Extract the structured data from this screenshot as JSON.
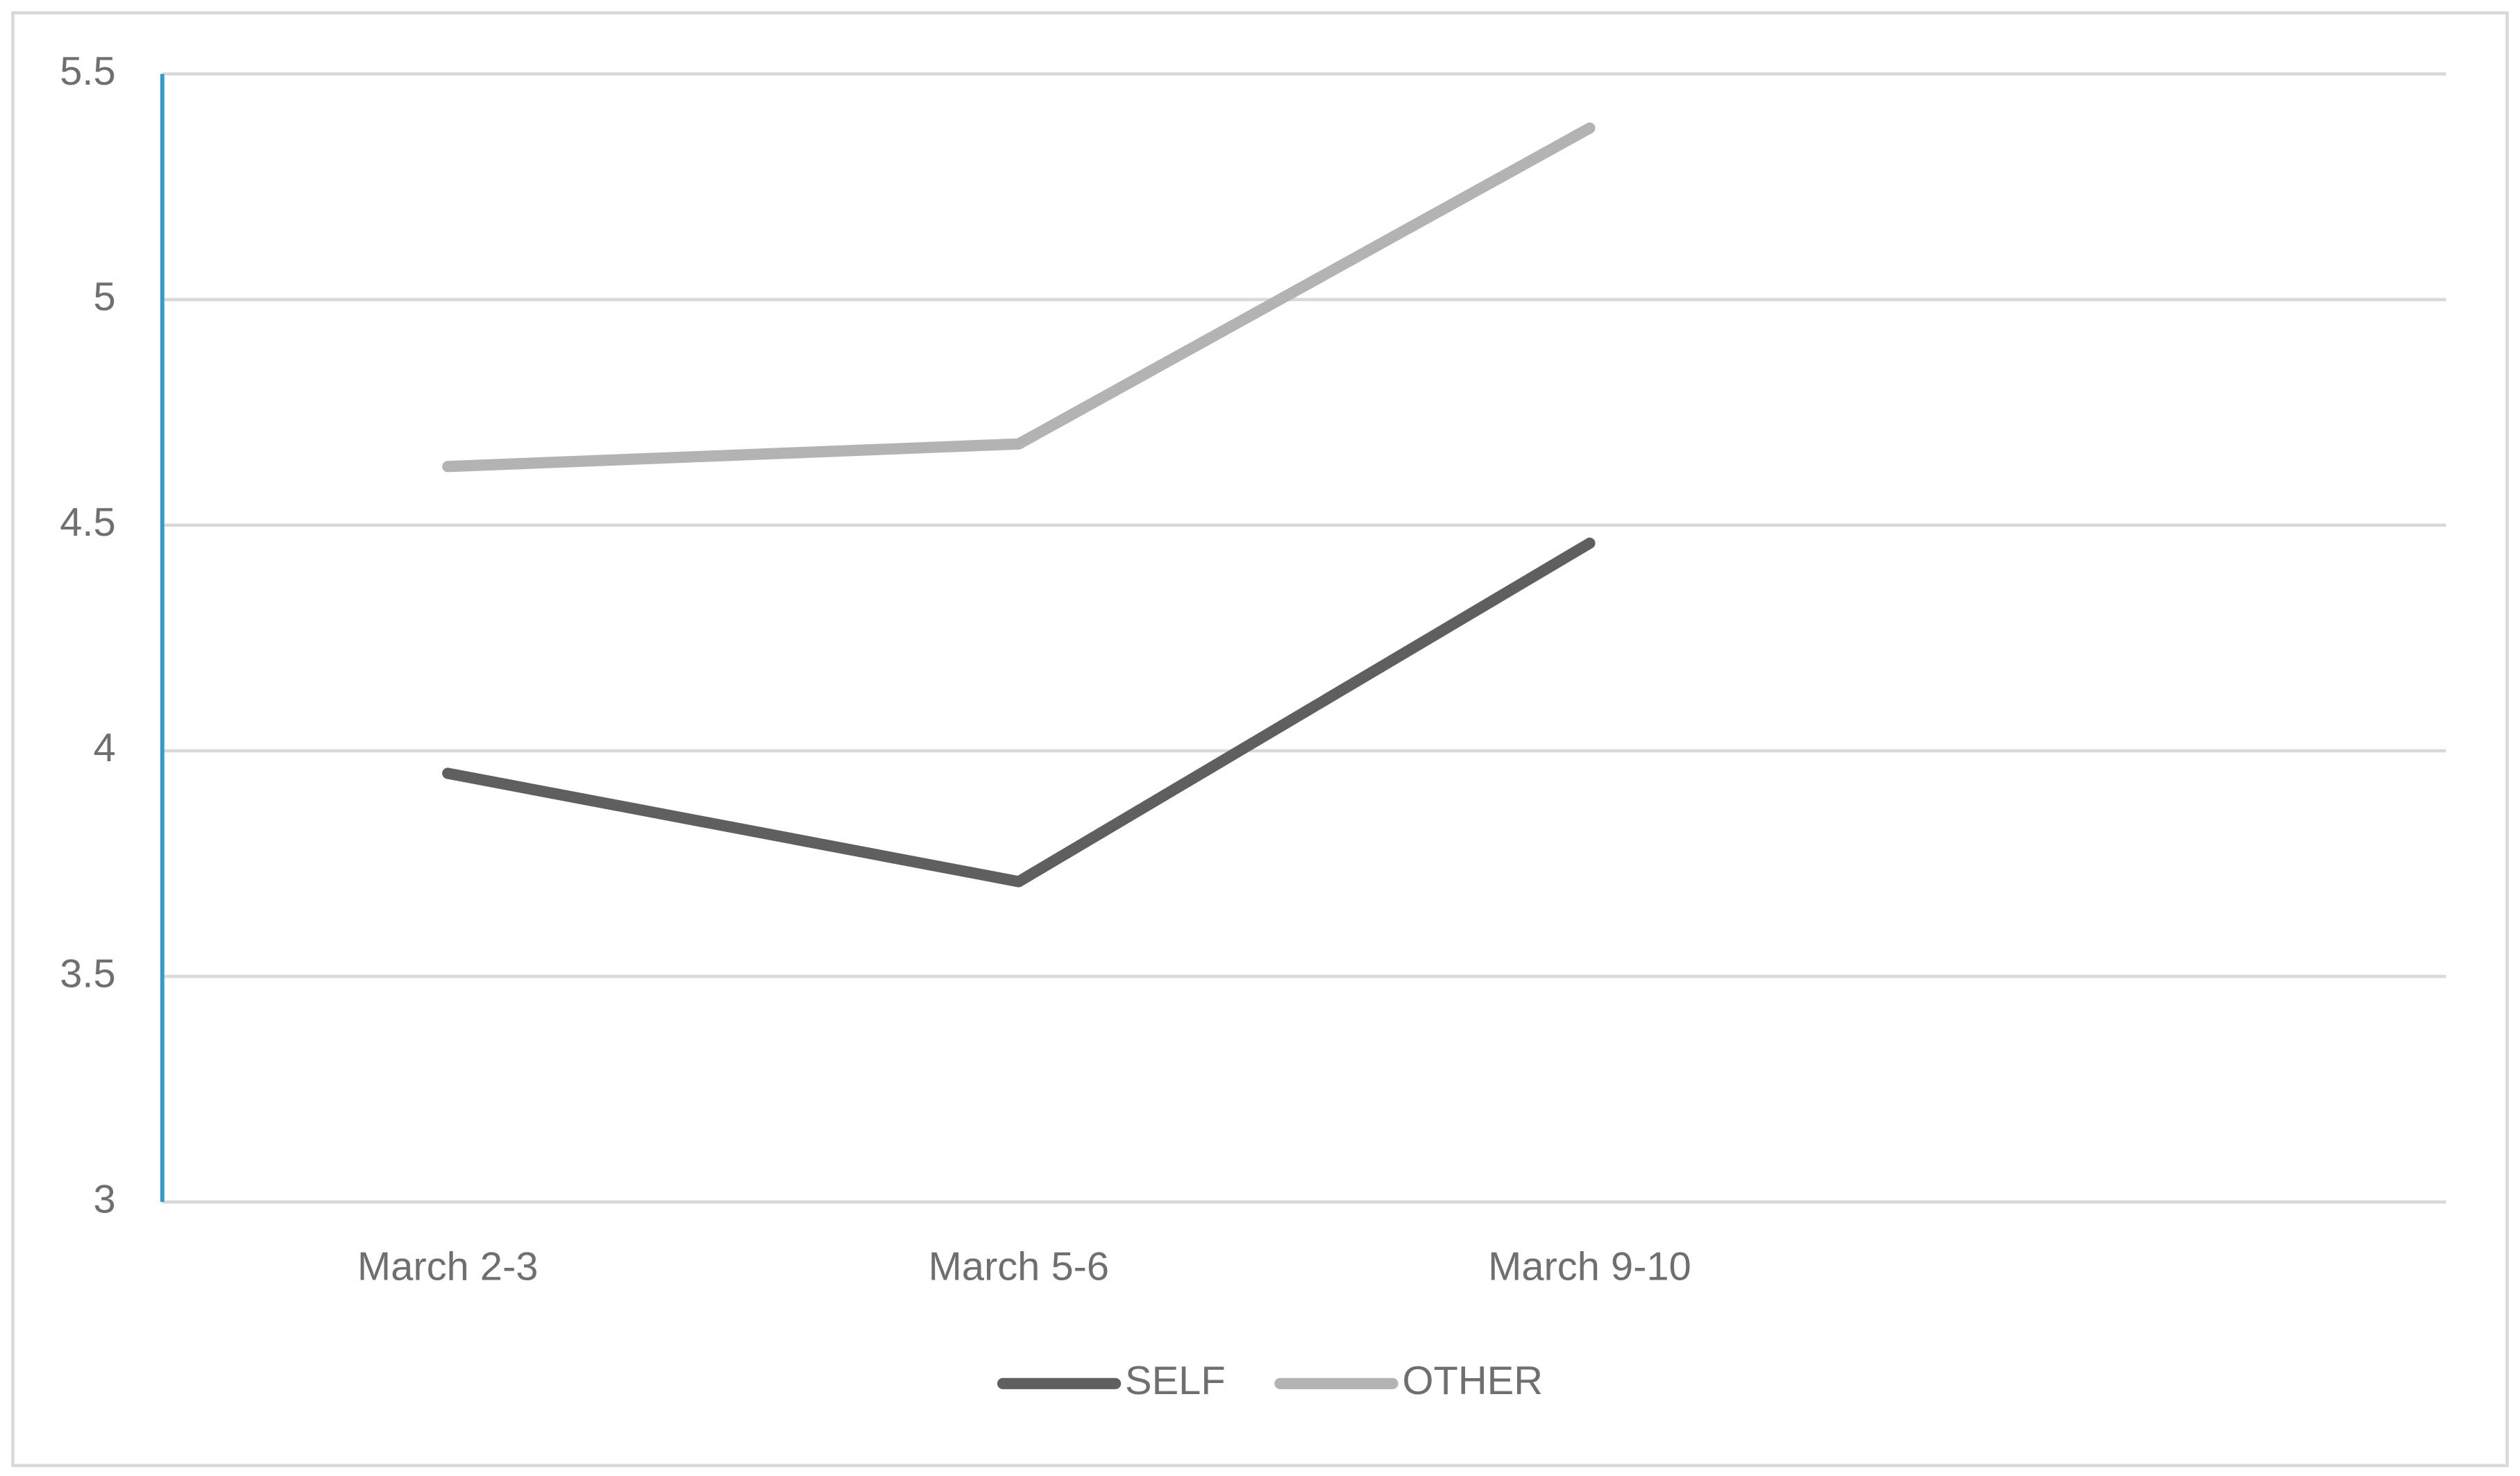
{
  "chart_data": {
    "type": "line",
    "categories": [
      "March 2-3",
      "March 5-6",
      "March 9-10",
      null
    ],
    "series": [
      {
        "name": "SELF",
        "color": "#5f5f5f",
        "values": [
          3.95,
          3.71,
          4.46,
          null
        ]
      },
      {
        "name": "OTHER",
        "color": "#b3b3b3",
        "values": [
          4.63,
          4.68,
          5.38,
          null
        ]
      }
    ],
    "ylim": [
      3,
      5.5
    ],
    "yticks": [
      3,
      3.5,
      4,
      4.5,
      5,
      5.5
    ],
    "grid": true,
    "legend": "bottom"
  }
}
